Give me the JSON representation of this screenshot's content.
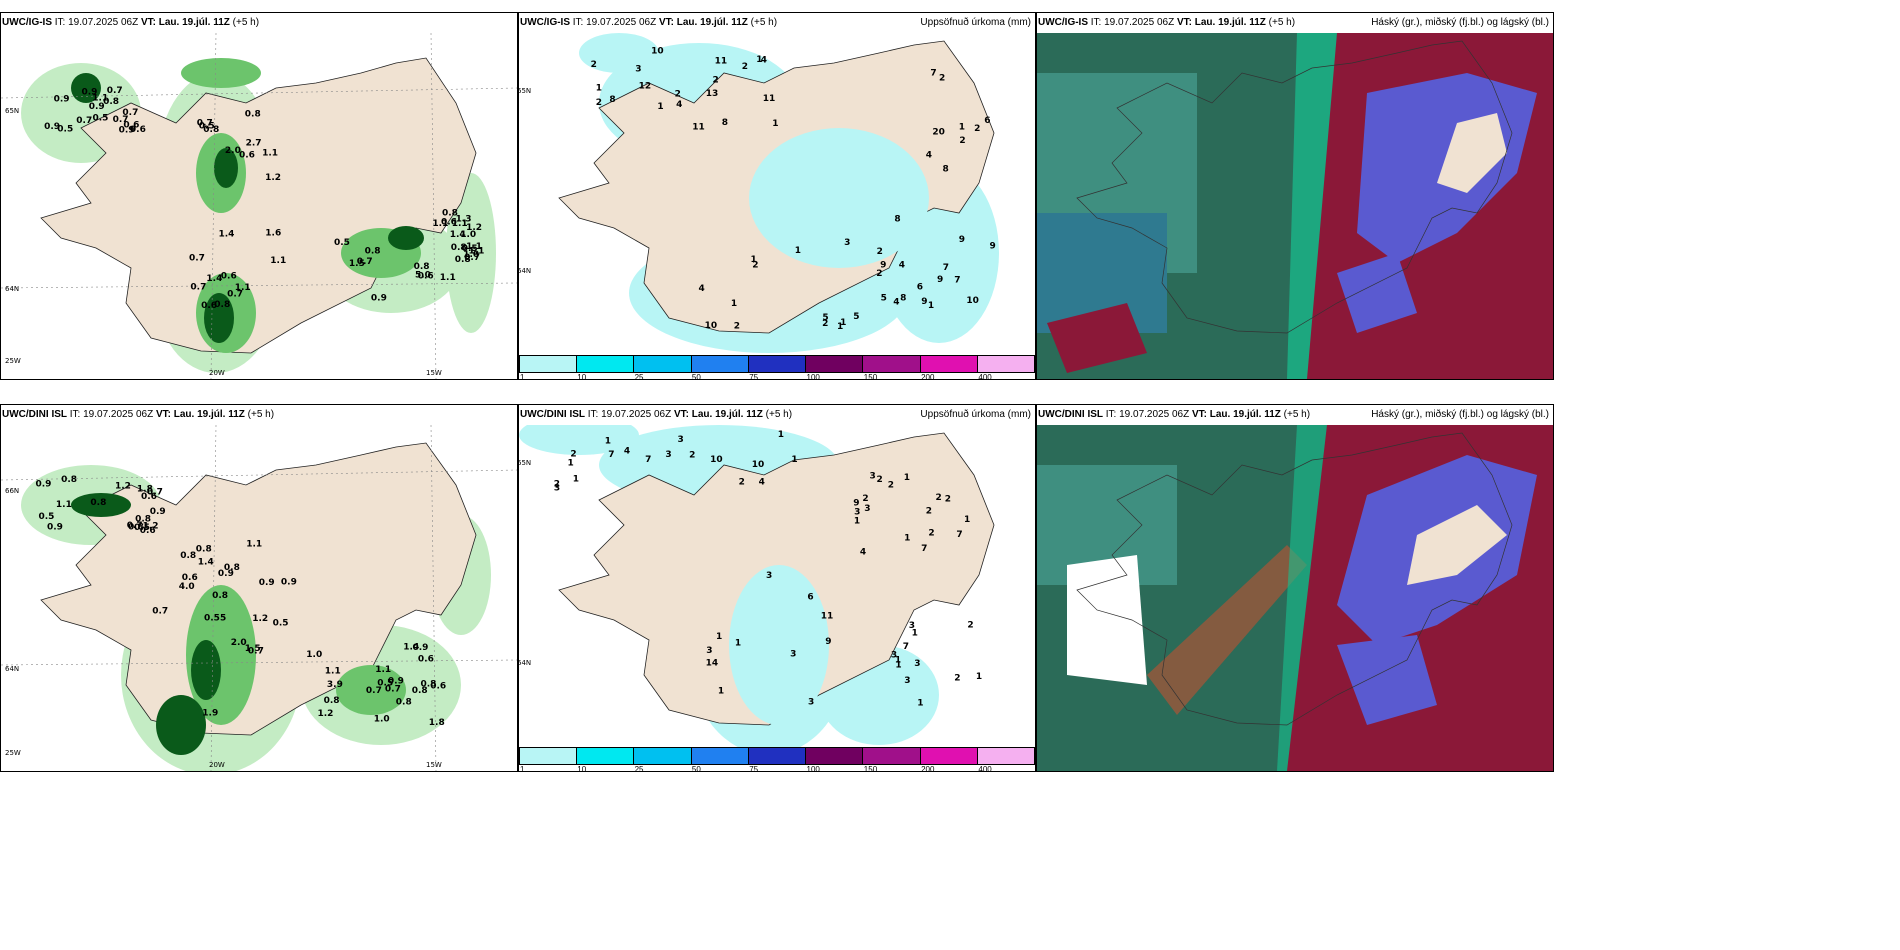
{
  "panels": [
    {
      "id": "p1",
      "header": {
        "model": "UWC/IG-IS",
        "it_label": "IT:",
        "it_value": "19.07.2025 06Z",
        "vt_label": "VT:",
        "vt_value": "Lau. 19.júl. 11Z",
        "lead": "(+5 h)",
        "right": ""
      },
      "axes": {
        "lat_top": "65N",
        "lat_bottom": "64N",
        "lon_left": "20W",
        "lon_right": "15W",
        "corner": "25W"
      },
      "numbers": [
        "0.6",
        "0.8",
        "0.5",
        "0.8",
        "0.6",
        "1.1",
        "0.8",
        "1.3",
        "0.8",
        "1.1",
        "0.8",
        "0.6",
        "1.1",
        "0.8",
        "2.7",
        "1.1",
        "0.8",
        "0.6",
        "1.1",
        "1.5",
        "0.6",
        "5.0",
        "1.2",
        "0.9",
        "0.7",
        "1.6",
        "2.0",
        "0.7",
        "1.4",
        "1.2",
        "0.9",
        "1.1",
        "0.8",
        "0.9",
        "0.7",
        "1.1",
        "0.5",
        "0.7",
        "0.6",
        "0.8",
        "0.9",
        "1.0",
        "1.4",
        "0.7",
        "0.5",
        "0.7",
        "0.9",
        "1.4",
        "0.7",
        "0.5",
        "0.5",
        "1.1",
        "0.7",
        "0.6",
        "0.9",
        "1.0",
        "0.7",
        "1.1",
        "0.7"
      ]
    },
    {
      "id": "p2",
      "header": {
        "model": "UWC/IG-IS",
        "it_label": "IT:",
        "it_value": "19.07.2025 06Z",
        "vt_label": "VT:",
        "vt_value": "Lau. 19.júl. 11Z",
        "lead": "(+5 h)",
        "right": "Uppsöfnuð úrkoma (mm)"
      },
      "axes": {
        "lat_top": "65N",
        "lat_bottom": "64N"
      },
      "numbers": [
        "5",
        "10",
        "4",
        "13",
        "5",
        "4",
        "7",
        "7",
        "20",
        "4",
        "2",
        "11",
        "12",
        "10",
        "3",
        "2",
        "2",
        "2",
        "1",
        "9",
        "8",
        "6",
        "11",
        "1",
        "1",
        "1",
        "2",
        "2",
        "2",
        "4",
        "2",
        "1",
        "8",
        "4",
        "2",
        "9",
        "8",
        "3",
        "1",
        "4",
        "9",
        "2",
        "1",
        "9",
        "11",
        "8",
        "7",
        "1",
        "1",
        "2",
        "8",
        "9",
        "6",
        "10",
        "2",
        "2",
        "1",
        "1",
        "5"
      ]
    },
    {
      "id": "p3",
      "header": {
        "model": "UWC/IG-IS",
        "it_label": "IT:",
        "it_value": "19.07.2025 06Z",
        "vt_label": "VT:",
        "vt_value": "Lau. 19.júl. 11Z",
        "lead": "(+5 h)",
        "right": "Háský (gr.), miðský (fj.bl.) og lágský (bl.)"
      }
    },
    {
      "id": "p4",
      "header": {
        "model": "UWC/DINI ISL",
        "it_label": "IT:",
        "it_value": "19.07.2025 06Z",
        "vt_label": "VT:",
        "vt_value": "Lau. 19.júl. 11Z",
        "lead": "(+5 h)",
        "right": ""
      },
      "axes": {
        "lat_top": "66N",
        "lat_bottom": "64N",
        "lon_left": "20W",
        "lon_right": "15W",
        "corner": "25W"
      },
      "numbers": [
        "0.9",
        "1.2",
        "0.7",
        "0.8",
        "0.8",
        "1.8",
        "1.9",
        "1.2",
        "0.8",
        "0.6",
        "0.8",
        "0.5",
        "0.9",
        "0.8",
        "0.55",
        "0.6",
        "1.4",
        "1.1",
        "0.5",
        "0.8",
        "0.6",
        "0.7",
        "0.9",
        "0.7",
        "0.7",
        "0.6",
        "1.8",
        "2.0",
        "4.0",
        "3.9",
        "0.9",
        "0.9",
        "0.7",
        "0.8",
        "0.9",
        "1.1",
        "1.2",
        "0.7",
        "0.8",
        "0.6",
        "1.1",
        "0.9",
        "1.4",
        "0.5",
        "1.5",
        "1.0",
        "0.8",
        "0.5",
        "0.8",
        "1.2",
        "0.9",
        "1.0",
        "0.8",
        "1.1",
        "0.8"
      ]
    },
    {
      "id": "p5",
      "header": {
        "model": "UWC/DINI ISL",
        "it_label": "IT:",
        "it_value": "19.07.2025 06Z",
        "vt_label": "VT:",
        "vt_value": "Lau. 19.júl. 11Z",
        "lead": "(+5 h)",
        "right": "Uppsöfnuð úrkoma (mm)"
      },
      "axes": {
        "lat_top": "65N",
        "lat_bottom": "64N"
      },
      "numbers": [
        "2",
        "3",
        "3",
        "3",
        "9",
        "11",
        "3",
        "14",
        "4",
        "4",
        "3",
        "1",
        "1",
        "1",
        "1",
        "1",
        "1",
        "1",
        "4",
        "1",
        "2",
        "2",
        "1",
        "1",
        "1",
        "2",
        "1",
        "3",
        "3",
        "2",
        "2",
        "1",
        "2",
        "1",
        "7",
        "7",
        "10",
        "7",
        "10",
        "7",
        "7",
        "3",
        "1",
        "2",
        "1",
        "6",
        "9",
        "3",
        "3",
        "2",
        "3",
        "3",
        "2",
        "2",
        "3",
        "3",
        "2",
        "1",
        "2"
      ]
    },
    {
      "id": "p6",
      "header": {
        "model": "UWC/DINI ISL",
        "it_label": "IT:",
        "it_value": "19.07.2025 06Z",
        "vt_label": "VT:",
        "vt_value": "Lau. 19.júl. 11Z",
        "lead": "(+5 h)",
        "right": "Háský (gr.), miðský (fj.bl.) og lágský (bl.)"
      }
    }
  ],
  "precip_legend": {
    "ticks": [
      "1",
      "10",
      "25",
      "50",
      "75",
      "100",
      "150",
      "200",
      "400"
    ],
    "colors": [
      "#b8f5f5",
      "#00e8f0",
      "#00c0f0",
      "#2080f0",
      "#2030c0",
      "#700060",
      "#a0108a",
      "#e010b0",
      "#f5b0f0"
    ]
  },
  "colors": {
    "land": "#f0e2d2",
    "ocean": "#ffffff",
    "green_light": "#c4ecc4",
    "green_mid": "#6cc46c",
    "green_dark": "#0a5a1a",
    "precip_light": "#b8f5f5",
    "cloud_high": "#2b6b58",
    "cloud_mid": "#5a5ad0",
    "cloud_low": "#8b1838"
  }
}
